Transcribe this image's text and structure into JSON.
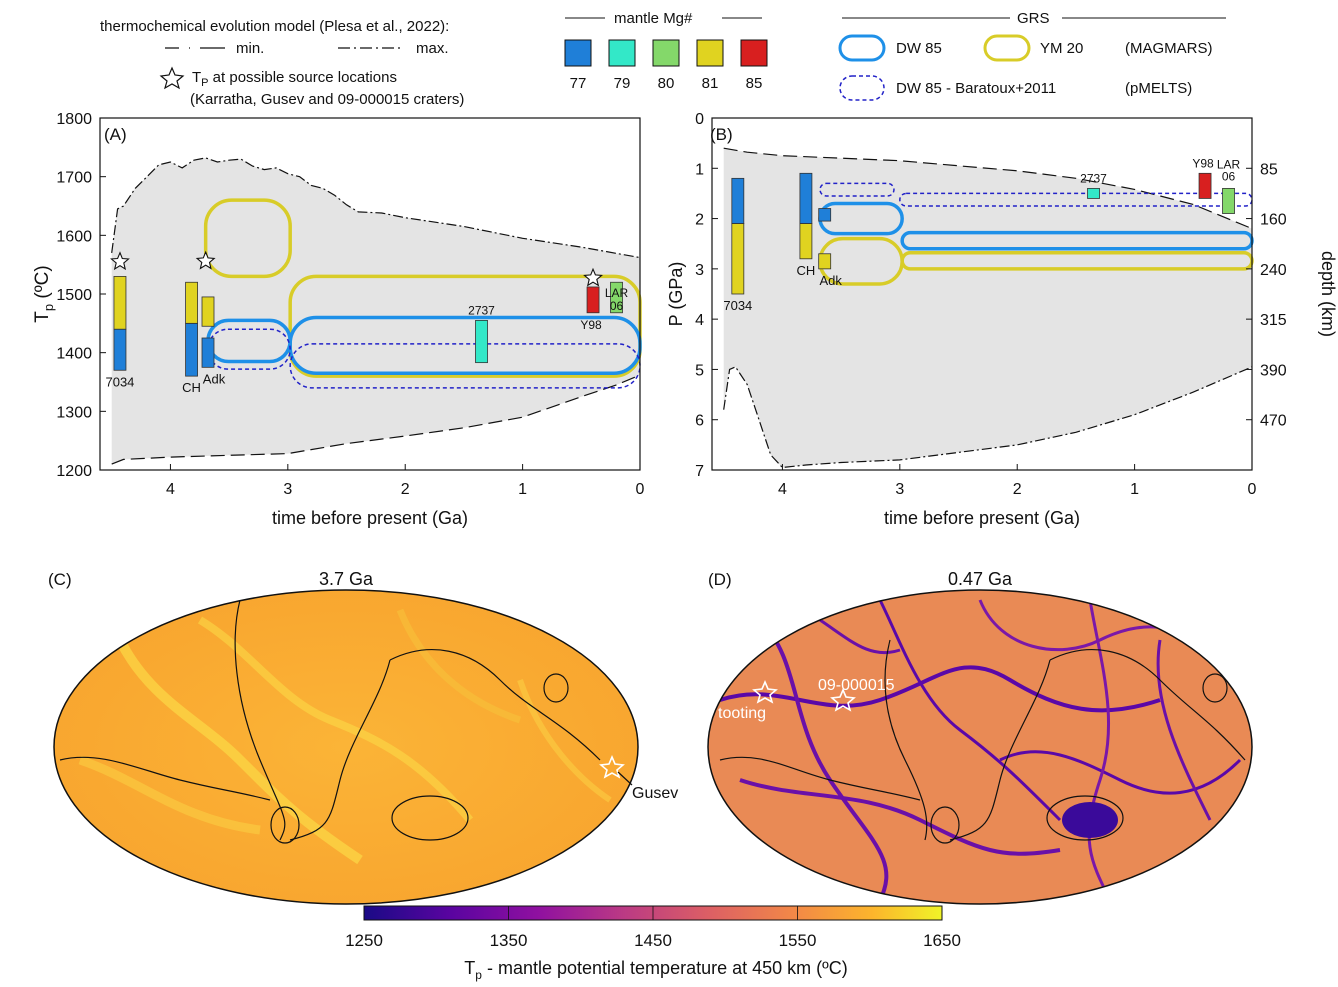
{
  "legend": {
    "model_title": "thermochemical evolution model (Plesa et al., 2022):",
    "min_label": "min.",
    "max_label": "max.",
    "tp_label_sym": "T",
    "tp_label_sub": "P",
    "tp_label_rest": " at possible source locations",
    "tp_label_line2": "(Karratha, Gusev and 09-000015 craters)",
    "mg_title": "mantle Mg#",
    "mg_items": [
      {
        "label": "77",
        "color": "#1f7fd8"
      },
      {
        "label": "79",
        "color": "#33e8c8"
      },
      {
        "label": "80",
        "color": "#84d86a"
      },
      {
        "label": "81",
        "color": "#e0d320"
      },
      {
        "label": "85",
        "color": "#d81f1f"
      }
    ],
    "grs_title": "GRS",
    "dw85": "DW 85",
    "ym20": "YM 20",
    "magmars": "(MAGMARS)",
    "dw85_b": "DW 85 - Baratoux+2011",
    "pmelts": "(pMELTS)"
  },
  "colors": {
    "dw85": "#1e90e8",
    "ym20": "#d8cc28",
    "baratoux": "#2222c8",
    "envelope": "#e4e4e4"
  },
  "chart_data": [
    {
      "id": "A",
      "type": "area",
      "panel_label": "(A)",
      "xlabel": "time before present (Ga)",
      "ylabel_main": "T",
      "ylabel_sub": "p",
      "ylabel_rest": " (ºC)",
      "xlim": [
        4.6,
        0
      ],
      "ylim": [
        1200,
        1800
      ],
      "xticks": [
        4,
        3,
        2,
        1,
        0
      ],
      "yticks": [
        1200,
        1300,
        1400,
        1500,
        1600,
        1700,
        1800
      ],
      "envelope_max": [
        [
          4.5,
          1570
        ],
        [
          4.45,
          1645
        ],
        [
          4.4,
          1650
        ],
        [
          4.3,
          1680
        ],
        [
          4.2,
          1700
        ],
        [
          4.1,
          1720
        ],
        [
          4.0,
          1725
        ],
        [
          3.9,
          1715
        ],
        [
          3.8,
          1728
        ],
        [
          3.7,
          1732
        ],
        [
          3.6,
          1725
        ],
        [
          3.5,
          1728
        ],
        [
          3.4,
          1730
        ],
        [
          3.3,
          1718
        ],
        [
          3.2,
          1712
        ],
        [
          3.1,
          1715
        ],
        [
          3.0,
          1705
        ],
        [
          2.9,
          1700
        ],
        [
          2.8,
          1685
        ],
        [
          2.7,
          1680
        ],
        [
          2.6,
          1668
        ],
        [
          2.5,
          1652
        ],
        [
          2.4,
          1640
        ],
        [
          2.2,
          1638
        ],
        [
          2.0,
          1630
        ],
        [
          1.5,
          1615
        ],
        [
          1.0,
          1595
        ],
        [
          0.5,
          1580
        ],
        [
          0,
          1562
        ]
      ],
      "envelope_min": [
        [
          4.5,
          1210
        ],
        [
          4.4,
          1218
        ],
        [
          4.2,
          1220
        ],
        [
          4.0,
          1222
        ],
        [
          3.5,
          1225
        ],
        [
          3.0,
          1228
        ],
        [
          2.5,
          1245
        ],
        [
          2.0,
          1258
        ],
        [
          1.5,
          1272
        ],
        [
          1.0,
          1290
        ],
        [
          0.5,
          1325
        ],
        [
          0.2,
          1345
        ],
        [
          0,
          1362
        ]
      ],
      "mantle_bars": [
        {
          "t": 4.43,
          "segments": [
            {
              "from": 1370,
              "to": 1440,
              "mg": "77"
            },
            {
              "from": 1440,
              "to": 1530,
              "mg": "81"
            }
          ],
          "label": "7034"
        },
        {
          "t": 3.82,
          "segments": [
            {
              "from": 1360,
              "to": 1450,
              "mg": "77"
            },
            {
              "from": 1450,
              "to": 1520,
              "mg": "81"
            }
          ],
          "label": "CH"
        },
        {
          "t": 3.68,
          "segments": [
            {
              "from": 1375,
              "to": 1425,
              "mg": "77"
            },
            {
              "from": 1445,
              "to": 1495,
              "mg": "81"
            }
          ],
          "label": "Adk"
        },
        {
          "t": 1.35,
          "segments": [
            {
              "from": 1383,
              "to": 1455,
              "mg": "79"
            }
          ],
          "label": "2737"
        },
        {
          "t": 0.4,
          "segments": [
            {
              "from": 1468,
              "to": 1512,
              "mg": "85"
            }
          ],
          "label": "Y98"
        },
        {
          "t": 0.2,
          "segments": [
            {
              "from": 1468,
              "to": 1520,
              "mg": "80"
            }
          ],
          "label": "LAR 06"
        }
      ],
      "grs_boxes": [
        {
          "kind": "ym20",
          "t_from": 3.7,
          "t_to": 2.98,
          "v_from": 1530,
          "v_to": 1660
        },
        {
          "kind": "ym20",
          "t_from": 2.98,
          "t_to": 0,
          "v_from": 1360,
          "v_to": 1530
        },
        {
          "kind": "dw85",
          "t_from": 3.68,
          "t_to": 2.98,
          "v_from": 1385,
          "v_to": 1455
        },
        {
          "kind": "dw85",
          "t_from": 2.98,
          "t_to": 0,
          "v_from": 1365,
          "v_to": 1460
        },
        {
          "kind": "baratoux",
          "t_from": 3.68,
          "t_to": 2.98,
          "v_from": 1372,
          "v_to": 1440
        },
        {
          "kind": "baratoux",
          "t_from": 2.98,
          "t_to": 0,
          "v_from": 1340,
          "v_to": 1415
        }
      ],
      "stars": [
        [
          4.43,
          1555
        ],
        [
          3.7,
          1556
        ],
        [
          0.4,
          1527
        ]
      ]
    },
    {
      "id": "B",
      "type": "area",
      "panel_label": "(B)",
      "xlabel": "time before present (Ga)",
      "ylabel": "P (GPa)",
      "ylabel_right": "depth (km)",
      "xlim": [
        4.6,
        0
      ],
      "ylim": [
        7,
        0
      ],
      "xticks": [
        4,
        3,
        2,
        1,
        0
      ],
      "yticks": [
        0,
        1,
        2,
        3,
        4,
        5,
        6,
        7
      ],
      "depth_ticks": [
        {
          "p": 1.0,
          "label": "85"
        },
        {
          "p": 2.0,
          "label": "160"
        },
        {
          "p": 3.0,
          "label": "240"
        },
        {
          "p": 4.0,
          "label": "315"
        },
        {
          "p": 5.0,
          "label": "390"
        },
        {
          "p": 6.0,
          "label": "470"
        }
      ],
      "envelope_top": [
        [
          4.5,
          0.6
        ],
        [
          4.3,
          0.68
        ],
        [
          4.0,
          0.75
        ],
        [
          3.5,
          0.8
        ],
        [
          3.0,
          0.85
        ],
        [
          2.5,
          0.95
        ],
        [
          2.0,
          1.05
        ],
        [
          1.5,
          1.2
        ],
        [
          1.0,
          1.42
        ],
        [
          0.5,
          1.72
        ],
        [
          0,
          2.2
        ]
      ],
      "envelope_bottom": [
        [
          4.5,
          5.8
        ],
        [
          4.45,
          5.0
        ],
        [
          4.4,
          4.95
        ],
        [
          4.3,
          5.3
        ],
        [
          4.2,
          6.0
        ],
        [
          4.1,
          6.7
        ],
        [
          4.0,
          6.95
        ],
        [
          3.8,
          6.9
        ],
        [
          3.5,
          6.85
        ],
        [
          3.0,
          6.8
        ],
        [
          2.5,
          6.65
        ],
        [
          2.0,
          6.5
        ],
        [
          1.5,
          6.25
        ],
        [
          1.0,
          5.9
        ],
        [
          0.5,
          5.45
        ],
        [
          0,
          4.95
        ]
      ],
      "mantle_bars": [
        {
          "t": 4.38,
          "segments": [
            {
              "from": 1.2,
              "to": 2.1,
              "mg": "77"
            },
            {
              "from": 2.1,
              "to": 3.5,
              "mg": "81"
            }
          ],
          "label": "7034"
        },
        {
          "t": 3.8,
          "segments": [
            {
              "from": 1.1,
              "to": 2.1,
              "mg": "77"
            },
            {
              "from": 2.1,
              "to": 2.8,
              "mg": "81"
            }
          ],
          "label": "CH"
        },
        {
          "t": 3.64,
          "segments": [
            {
              "from": 1.8,
              "to": 2.05,
              "mg": "77"
            },
            {
              "from": 2.7,
              "to": 3.0,
              "mg": "81"
            }
          ],
          "label": "Adk"
        },
        {
          "t": 1.35,
          "segments": [
            {
              "from": 1.4,
              "to": 1.6,
              "mg": "79"
            }
          ],
          "label": "2737"
        },
        {
          "t": 0.4,
          "segments": [
            {
              "from": 1.1,
              "to": 1.6,
              "mg": "85"
            }
          ],
          "label": "Y98"
        },
        {
          "t": 0.2,
          "segments": [
            {
              "from": 1.4,
              "to": 1.9,
              "mg": "80"
            }
          ],
          "label": "LAR 06"
        }
      ],
      "grs_boxes": [
        {
          "kind": "baratoux",
          "t_from": 3.68,
          "t_to": 3.05,
          "v_from": 1.3,
          "v_to": 1.55
        },
        {
          "kind": "baratoux",
          "t_from": 3.0,
          "t_to": 0,
          "v_from": 1.5,
          "v_to": 1.75
        },
        {
          "kind": "dw85",
          "t_from": 3.68,
          "t_to": 2.98,
          "v_from": 1.7,
          "v_to": 2.3
        },
        {
          "kind": "dw85",
          "t_from": 2.98,
          "t_to": 0,
          "v_from": 2.28,
          "v_to": 2.6
        },
        {
          "kind": "ym20",
          "t_from": 3.68,
          "t_to": 2.98,
          "v_from": 2.4,
          "v_to": 3.3
        },
        {
          "kind": "ym20",
          "t_from": 2.98,
          "t_to": 0,
          "v_from": 2.68,
          "v_to": 3.0
        }
      ]
    }
  ],
  "maps": {
    "c_label": "(C)",
    "c_title": "3.7 Ga",
    "d_label": "(D)",
    "d_title": "0.47 Ga",
    "gusev": "Gusev",
    "tooting": "tooting",
    "crater": "09-000015"
  },
  "colorbar": {
    "ticks": [
      "1250",
      "1350",
      "1450",
      "1550",
      "1650"
    ],
    "label_main": "T",
    "label_sub": "p",
    "label_rest": " - mantle potential temperature at 450 km (ºC)"
  }
}
